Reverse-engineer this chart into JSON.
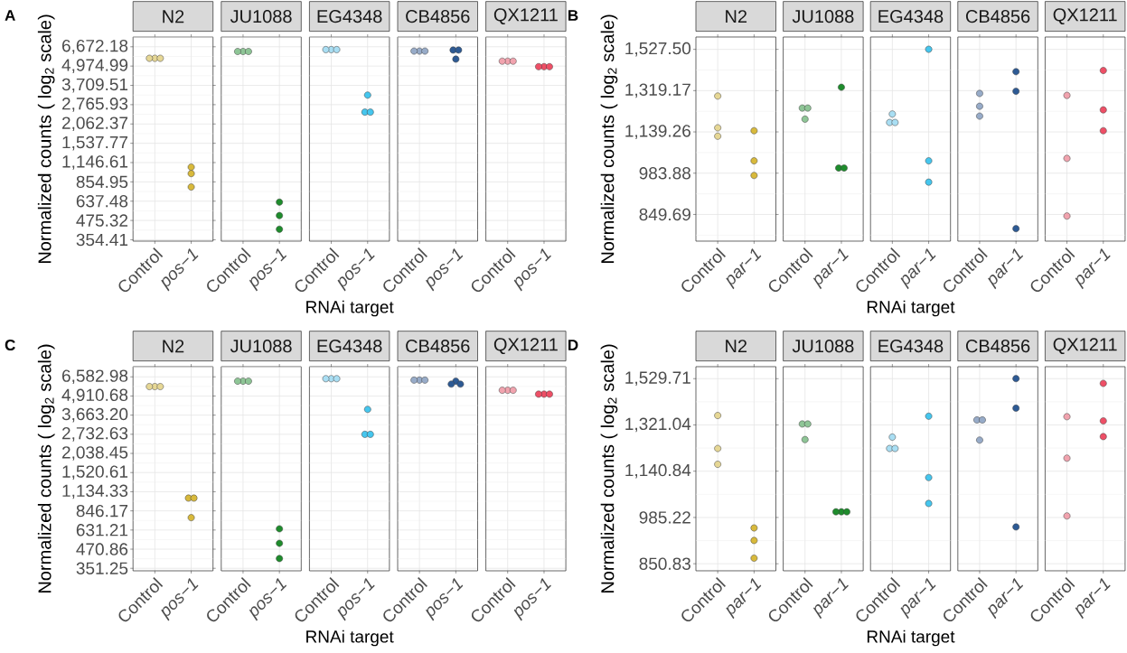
{
  "chart_data": [
    {
      "type": "scatter",
      "title": "N2",
      "categories": [
        "Control",
        "pos−1"
      ],
      "series": [
        {
          "values": [
            5600,
            1070
          ],
          "colors": [
            "#e6d795",
            "#d8b93b"
          ]
        },
        {
          "values": [
            5600,
            970
          ],
          "colors": [
            "#e6d795",
            "#d8b93b"
          ]
        },
        {
          "values": [
            5600,
            791
          ],
          "colors": [
            "#e6d795",
            "#d8b93b"
          ]
        }
      ],
      "log": "y",
      "ylim": [
        347,
        7740
      ],
      "yticks": [
        {
          "value": 354.41,
          "label": "354.41"
        },
        {
          "value": 475.32,
          "label": "475.32"
        },
        {
          "value": 637.48,
          "label": "637.48"
        },
        {
          "value": 854.95,
          "label": "854.95"
        },
        {
          "value": 1146.61,
          "label": "1,146.61"
        },
        {
          "value": 1537.77,
          "label": "1,537.77"
        },
        {
          "value": 2062.37,
          "label": "2,062.37"
        },
        {
          "value": 2765.93,
          "label": "2,765.93"
        },
        {
          "value": 3709.51,
          "label": "3,709.51"
        },
        {
          "value": 4974.99,
          "label": "4,974.99"
        },
        {
          "value": 6672.18,
          "label": "6,672.18"
        }
      ],
      "grid": true,
      "marker": "circle",
      "ylabel": "Normalized counts ( log$_{2}$ scale)",
      "annotations": [
        "A"
      ]
    },
    {
      "type": "scatter",
      "title": "JU1088",
      "categories": [
        "Control",
        "pos−1"
      ],
      "series": [
        {
          "values": [
            6210,
            628
          ],
          "colors": [
            "#8ec596",
            "#1e8c2c"
          ]
        },
        {
          "values": [
            6210,
            512
          ],
          "colors": [
            "#8ec596",
            "#1e8c2c"
          ]
        },
        {
          "values": [
            6210,
            416
          ],
          "colors": [
            "#8ec596",
            "#1e8c2c"
          ]
        }
      ],
      "log": "y",
      "ylim": [
        347,
        7740
      ],
      "yticks": [
        354.41,
        475.32,
        637.48,
        854.95,
        1146.61,
        1537.77,
        2062.37,
        2765.93,
        3709.51,
        4974.99,
        6672.18
      ],
      "grid": true,
      "marker": "circle",
      "tick_labels": "x"
    },
    {
      "type": "scatter",
      "title": "EG4348",
      "categories": [
        "Control",
        "pos−1"
      ],
      "series": [
        {
          "values": [
            6390,
            3200
          ],
          "colors": [
            "#a9def3",
            "#45c6ee"
          ]
        },
        {
          "values": [
            6390,
            2470
          ],
          "colors": [
            "#a9def3",
            "#45c6ee"
          ]
        },
        {
          "values": [
            6390,
            2470
          ],
          "colors": [
            "#a9def3",
            "#45c6ee"
          ]
        }
      ],
      "log": "y",
      "ylim": [
        347,
        7740
      ],
      "yticks": [
        354.41,
        475.32,
        637.48,
        854.95,
        1146.61,
        1537.77,
        2062.37,
        2765.93,
        3709.51,
        4974.99,
        6672.18
      ],
      "grid": true,
      "marker": "circle",
      "tick_labels": "x",
      "xlabel": "RNAi target"
    },
    {
      "type": "scatter",
      "title": "CB4856",
      "categories": [
        "Control",
        "pos−1"
      ],
      "series": [
        {
          "values": [
            6250,
            6350
          ],
          "colors": [
            "#97abc8",
            "#2d5a94"
          ]
        },
        {
          "values": [
            6250,
            6350
          ],
          "colors": [
            "#97abc8",
            "#2d5a94"
          ]
        },
        {
          "values": [
            6250,
            5530
          ],
          "colors": [
            "#97abc8",
            "#2d5a94"
          ]
        }
      ],
      "log": "y",
      "ylim": [
        347,
        7740
      ],
      "yticks": [
        354.41,
        475.32,
        637.48,
        854.95,
        1146.61,
        1537.77,
        2062.37,
        2765.93,
        3709.51,
        4974.99,
        6672.18
      ],
      "grid": true,
      "marker": "circle",
      "tick_labels": "x"
    },
    {
      "type": "scatter",
      "title": "QX1211",
      "categories": [
        "Control",
        "pos−1"
      ],
      "series": [
        {
          "values": [
            5360,
            4930
          ],
          "colors": [
            "#f1a3ae",
            "#ee4f66"
          ]
        },
        {
          "values": [
            5360,
            4930
          ],
          "colors": [
            "#f1a3ae",
            "#ee4f66"
          ]
        },
        {
          "values": [
            5360,
            4930
          ],
          "colors": [
            "#f1a3ae",
            "#ee4f66"
          ]
        }
      ],
      "log": "y",
      "ylim": [
        347,
        7740
      ],
      "yticks": [
        354.41,
        475.32,
        637.48,
        854.95,
        1146.61,
        1537.77,
        2062.37,
        2765.93,
        3709.51,
        4974.99,
        6672.18
      ],
      "grid": true,
      "marker": "circle",
      "tick_labels": "x"
    },
    {
      "type": "scatter",
      "title": "N2",
      "categories": [
        "Control",
        "par−1"
      ],
      "series": [
        {
          "values": [
            1294,
            1144
          ],
          "colors": [
            "#e6d795",
            "#d8b93b"
          ]
        },
        {
          "values": [
            1156,
            1028
          ],
          "colors": [
            "#e6d795",
            "#d8b93b"
          ]
        },
        {
          "values": [
            1122,
            976
          ],
          "colors": [
            "#e6d795",
            "#d8b93b"
          ]
        }
      ],
      "log": "y",
      "ylim": [
        773,
        1596
      ],
      "yticks": [
        {
          "value": 849.69,
          "label": "849.69"
        },
        {
          "value": 983.88,
          "label": "983.88"
        },
        {
          "value": 1139.26,
          "label": "1,139.26"
        },
        {
          "value": 1319.17,
          "label": "1,319.17"
        },
        {
          "value": 1527.5,
          "label": "1,527.50"
        }
      ],
      "grid": true,
      "marker": "circle",
      "ylabel": "Normalized counts ( log$_{2}$ scale)",
      "annotations": [
        "B"
      ]
    },
    {
      "type": "scatter",
      "title": "JU1088",
      "categories": [
        "Control",
        "par−1"
      ],
      "series": [
        {
          "values": [
            1240,
            1335
          ],
          "colors": [
            "#8ec596",
            "#1e8c2c"
          ]
        },
        {
          "values": [
            1240,
            1002
          ],
          "colors": [
            "#8ec596",
            "#1e8c2c"
          ]
        },
        {
          "values": [
            1192,
            1002
          ],
          "colors": [
            "#8ec596",
            "#1e8c2c"
          ]
        }
      ],
      "log": "y",
      "ylim": [
        773,
        1596
      ],
      "yticks": [
        849.69,
        983.88,
        1139.26,
        1319.17,
        1527.5
      ],
      "grid": true,
      "marker": "circle",
      "tick_labels": "x"
    },
    {
      "type": "scatter",
      "title": "EG4348",
      "categories": [
        "Control",
        "par−1"
      ],
      "series": [
        {
          "values": [
            1214,
            1528
          ],
          "colors": [
            "#a9def3",
            "#45c6ee"
          ]
        },
        {
          "values": [
            1178,
            1028
          ],
          "colors": [
            "#a9def3",
            "#45c6ee"
          ]
        },
        {
          "values": [
            1178,
            953
          ],
          "colors": [
            "#a9def3",
            "#45c6ee"
          ]
        }
      ],
      "log": "y",
      "ylim": [
        773,
        1596
      ],
      "yticks": [
        849.69,
        983.88,
        1139.26,
        1319.17,
        1527.5
      ],
      "grid": true,
      "marker": "circle",
      "tick_labels": "x",
      "xlabel": "RNAi target"
    },
    {
      "type": "scatter",
      "title": "CB4856",
      "categories": [
        "Control",
        "par−1"
      ],
      "series": [
        {
          "values": [
            1306,
            1411
          ],
          "colors": [
            "#97abc8",
            "#2d5a94"
          ]
        },
        {
          "values": [
            1248,
            1316
          ],
          "colors": [
            "#97abc8",
            "#2d5a94"
          ]
        },
        {
          "values": [
            1205,
            808
          ],
          "colors": [
            "#97abc8",
            "#2d5a94"
          ]
        }
      ],
      "log": "y",
      "ylim": [
        773,
        1596
      ],
      "yticks": [
        849.69,
        983.88,
        1139.26,
        1319.17,
        1527.5
      ],
      "grid": true,
      "marker": "circle",
      "tick_labels": "x"
    },
    {
      "type": "scatter",
      "title": "QX1211",
      "categories": [
        "Control",
        "par−1"
      ],
      "series": [
        {
          "values": [
            1297,
            1417
          ],
          "colors": [
            "#f1a3ae",
            "#ee4f66"
          ]
        },
        {
          "values": [
            1037,
            1232
          ],
          "colors": [
            "#f1a3ae",
            "#ee4f66"
          ]
        },
        {
          "values": [
            845,
            1144
          ],
          "colors": [
            "#f1a3ae",
            "#ee4f66"
          ]
        }
      ],
      "log": "y",
      "ylim": [
        773,
        1596
      ],
      "yticks": [
        849.69,
        983.88,
        1139.26,
        1319.17,
        1527.5
      ],
      "grid": true,
      "marker": "circle",
      "tick_labels": "x"
    },
    {
      "type": "scatter",
      "title": "N2",
      "categories": [
        "Control",
        "pos−1"
      ],
      "series": [
        {
          "values": [
            5670,
            1029
          ],
          "colors": [
            "#e6d795",
            "#d8b93b"
          ]
        },
        {
          "values": [
            5670,
            1029
          ],
          "colors": [
            "#e6d795",
            "#d8b93b"
          ]
        },
        {
          "values": [
            5670,
            763
          ],
          "colors": [
            "#e6d795",
            "#d8b93b"
          ]
        }
      ],
      "log": "y",
      "ylim": [
        338,
        7688
      ],
      "yticks": [
        {
          "value": 351.25,
          "label": "351.25"
        },
        {
          "value": 470.86,
          "label": "470.86"
        },
        {
          "value": 631.21,
          "label": "631.21"
        },
        {
          "value": 846.17,
          "label": "846.17"
        },
        {
          "value": 1134.33,
          "label": "1,134.33"
        },
        {
          "value": 1520.61,
          "label": "1,520.61"
        },
        {
          "value": 2038.45,
          "label": "2,038.45"
        },
        {
          "value": 2732.63,
          "label": "2,732.63"
        },
        {
          "value": 3663.2,
          "label": "3,663.20"
        },
        {
          "value": 4910.68,
          "label": "4,910.68"
        },
        {
          "value": 6582.98,
          "label": "6,582.98"
        }
      ],
      "grid": true,
      "marker": "circle",
      "ylabel": "Normalized counts ( log$_{2}$ scale)",
      "annotations": [
        "C"
      ]
    },
    {
      "type": "scatter",
      "title": "JU1088",
      "categories": [
        "Control",
        "pos−1"
      ],
      "series": [
        {
          "values": [
            6160,
            643
          ],
          "colors": [
            "#8ec596",
            "#1e8c2c"
          ]
        },
        {
          "values": [
            6160,
            515
          ],
          "colors": [
            "#8ec596",
            "#1e8c2c"
          ]
        },
        {
          "values": [
            6160,
            408
          ],
          "colors": [
            "#8ec596",
            "#1e8c2c"
          ]
        }
      ],
      "log": "y",
      "ylim": [
        338,
        7688
      ],
      "yticks": [
        351.25,
        470.86,
        631.21,
        846.17,
        1134.33,
        1520.61,
        2038.45,
        2732.63,
        3663.2,
        4910.68,
        6582.98
      ],
      "grid": true,
      "marker": "circle",
      "tick_labels": "x"
    },
    {
      "type": "scatter",
      "title": "EG4348",
      "categories": [
        "Control",
        "pos−1"
      ],
      "series": [
        {
          "values": [
            6400,
            4000
          ],
          "colors": [
            "#a9def3",
            "#45c6ee"
          ]
        },
        {
          "values": [
            6400,
            2730
          ],
          "colors": [
            "#a9def3",
            "#45c6ee"
          ]
        },
        {
          "values": [
            6400,
            2730
          ],
          "colors": [
            "#a9def3",
            "#45c6ee"
          ]
        }
      ],
      "log": "y",
      "ylim": [
        338,
        7688
      ],
      "yticks": [
        351.25,
        470.86,
        631.21,
        846.17,
        1134.33,
        1520.61,
        2038.45,
        2732.63,
        3663.2,
        4910.68,
        6582.98
      ],
      "grid": true,
      "marker": "circle",
      "tick_labels": "x",
      "xlabel": "RNAi target"
    },
    {
      "type": "scatter",
      "title": "CB4856",
      "categories": [
        "Control",
        "pos−1"
      ],
      "series": [
        {
          "values": [
            6260,
            6160
          ],
          "colors": [
            "#97abc8",
            "#2d5a94"
          ]
        },
        {
          "values": [
            6260,
            5890
          ],
          "colors": [
            "#97abc8",
            "#2d5a94"
          ]
        },
        {
          "values": [
            6260,
            5890
          ],
          "colors": [
            "#97abc8",
            "#2d5a94"
          ]
        }
      ],
      "log": "y",
      "ylim": [
        338,
        7688
      ],
      "yticks": [
        351.25,
        470.86,
        631.21,
        846.17,
        1134.33,
        1520.61,
        2038.45,
        2732.63,
        3663.2,
        4910.68,
        6582.98
      ],
      "grid": true,
      "marker": "circle",
      "tick_labels": "x"
    },
    {
      "type": "scatter",
      "title": "QX1211",
      "categories": [
        "Control",
        "pos−1"
      ],
      "series": [
        {
          "values": [
            5360,
            5050
          ],
          "colors": [
            "#f1a3ae",
            "#ee4f66"
          ]
        },
        {
          "values": [
            5360,
            5050
          ],
          "colors": [
            "#f1a3ae",
            "#ee4f66"
          ]
        },
        {
          "values": [
            5360,
            5050
          ],
          "colors": [
            "#f1a3ae",
            "#ee4f66"
          ]
        }
      ],
      "log": "y",
      "ylim": [
        338,
        7688
      ],
      "yticks": [
        351.25,
        470.86,
        631.21,
        846.17,
        1134.33,
        1520.61,
        2038.45,
        2732.63,
        3663.2,
        4910.68,
        6582.98
      ],
      "grid": true,
      "marker": "circle",
      "tick_labels": "x"
    },
    {
      "type": "scatter",
      "title": "N2",
      "categories": [
        "Control",
        "par−1"
      ],
      "series": [
        {
          "values": [
            1361,
            953
          ],
          "colors": [
            "#e6d795",
            "#d8b93b"
          ]
        },
        {
          "values": [
            1226,
            916
          ],
          "colors": [
            "#e6d795",
            "#d8b93b"
          ]
        },
        {
          "values": [
            1166,
            866
          ],
          "colors": [
            "#e6d795",
            "#d8b93b"
          ]
        }
      ],
      "log": "y",
      "ylim": [
        832,
        1589
      ],
      "yticks": [
        {
          "value": 850.83,
          "label": "850.83"
        },
        {
          "value": 985.22,
          "label": "985.22"
        },
        {
          "value": 1140.84,
          "label": "1,140.84"
        },
        {
          "value": 1321.04,
          "label": "1,321.04"
        },
        {
          "value": 1529.71,
          "label": "1,529.71"
        }
      ],
      "grid": true,
      "marker": "circle",
      "ylabel": "Normalized counts ( log$_{2}$ scale)",
      "annotations": [
        "D"
      ]
    },
    {
      "type": "scatter",
      "title": "JU1088",
      "categories": [
        "Control",
        "par−1"
      ],
      "series": [
        {
          "values": [
            1325,
            1003
          ],
          "colors": [
            "#8ec596",
            "#1e8c2c"
          ]
        },
        {
          "values": [
            1325,
            1003
          ],
          "colors": [
            "#8ec596",
            "#1e8c2c"
          ]
        },
        {
          "values": [
            1261,
            1003
          ],
          "colors": [
            "#8ec596",
            "#1e8c2c"
          ]
        }
      ],
      "log": "y",
      "ylim": [
        832,
        1589
      ],
      "yticks": [
        850.83,
        985.22,
        1140.84,
        1321.04,
        1529.71
      ],
      "grid": true,
      "marker": "circle",
      "tick_labels": "x"
    },
    {
      "type": "scatter",
      "title": "EG4348",
      "categories": [
        "Control",
        "par−1"
      ],
      "series": [
        {
          "values": [
            1271,
            1358
          ],
          "colors": [
            "#a9def3",
            "#45c6ee"
          ]
        },
        {
          "values": [
            1226,
            1118
          ],
          "colors": [
            "#a9def3",
            "#45c6ee"
          ]
        },
        {
          "values": [
            1226,
            1030
          ],
          "colors": [
            "#a9def3",
            "#45c6ee"
          ]
        }
      ],
      "log": "y",
      "ylim": [
        832,
        1589
      ],
      "yticks": [
        850.83,
        985.22,
        1140.84,
        1321.04,
        1529.71
      ],
      "grid": true,
      "marker": "circle",
      "tick_labels": "x",
      "xlabel": "RNAi target"
    },
    {
      "type": "scatter",
      "title": "CB4856",
      "categories": [
        "Control",
        "par−1"
      ],
      "series": [
        {
          "values": [
            1342,
            1530
          ],
          "colors": [
            "#97abc8",
            "#2d5a94"
          ]
        },
        {
          "values": [
            1342,
            1393
          ],
          "colors": [
            "#97abc8",
            "#2d5a94"
          ]
        },
        {
          "values": [
            1259,
            956
          ],
          "colors": [
            "#97abc8",
            "#2d5a94"
          ]
        }
      ],
      "log": "y",
      "ylim": [
        832,
        1589
      ],
      "yticks": [
        850.83,
        985.22,
        1140.84,
        1321.04,
        1529.71
      ],
      "grid": true,
      "marker": "circle",
      "tick_labels": "x"
    },
    {
      "type": "scatter",
      "title": "QX1211",
      "categories": [
        "Control",
        "par−1"
      ],
      "series": [
        {
          "values": [
            1356,
            1507
          ],
          "colors": [
            "#f1a3ae",
            "#ee4f66"
          ]
        },
        {
          "values": [
            1189,
            1338
          ],
          "colors": [
            "#f1a3ae",
            "#ee4f66"
          ]
        },
        {
          "values": [
            990,
            1273
          ],
          "colors": [
            "#f1a3ae",
            "#ee4f66"
          ]
        }
      ],
      "log": "y",
      "ylim": [
        832,
        1589
      ],
      "yticks": [
        850.83,
        985.22,
        1140.84,
        1321.04,
        1529.71
      ],
      "grid": true,
      "marker": "circle",
      "tick_labels": "x"
    }
  ]
}
